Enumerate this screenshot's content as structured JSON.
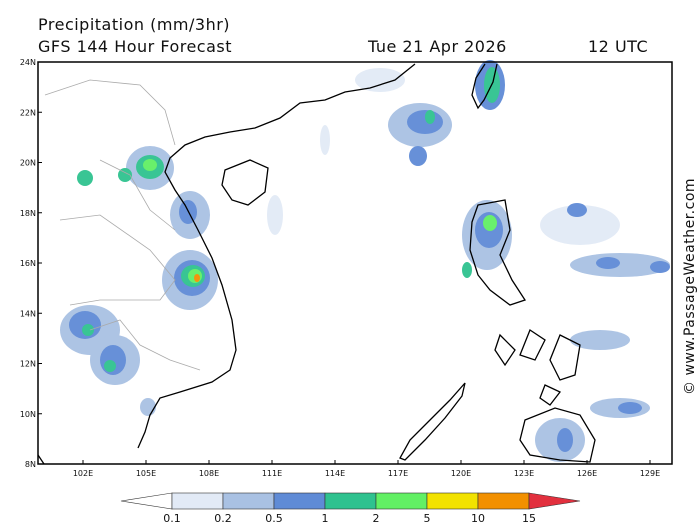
{
  "header": {
    "title": "Precipitation (mm/3hr)",
    "subtitle": "GFS 144 Hour Forecast",
    "date": "Tue 21 Apr 2026",
    "time": "12 UTC"
  },
  "map": {
    "lat_labels": [
      "24N",
      "22N",
      "20N",
      "18N",
      "16N",
      "14N",
      "12N",
      "10N",
      "8N"
    ],
    "lon_labels": [
      "102E",
      "105E",
      "108E",
      "111E",
      "114E",
      "117E",
      "120E",
      "123E",
      "126E",
      "129E"
    ]
  },
  "colorbar": {
    "levels": [
      0.1,
      0.2,
      0.5,
      1,
      2,
      5,
      10,
      15
    ],
    "colors": [
      "#ffffff",
      "#e2eaf6",
      "#a9c1e3",
      "#5f8bd6",
      "#2fc28f",
      "#62f064",
      "#f2e200",
      "#f29000",
      "#e2303e"
    ]
  },
  "watermark": "© www.PassageWeather.com"
}
